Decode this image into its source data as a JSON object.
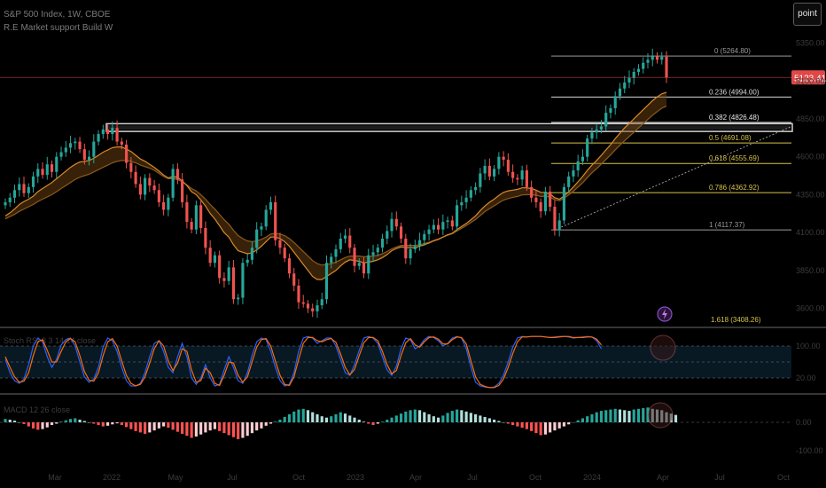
{
  "header": {
    "title": "S&P 500 Index, 1W, CBOE",
    "subtitle": "R.E Market support Build W"
  },
  "toolbar": {
    "point_label": "point"
  },
  "colors": {
    "up": "#26a69a",
    "down": "#ef5350",
    "ema_fast": "#d98a2b",
    "ema_slow": "#8c5a1e",
    "price_badge": "#e04848"
  },
  "chart_data": [
    {
      "type": "candlestick",
      "panel": "price",
      "last_price_label": "5123.41",
      "y_tick_labels": [
        "5350.00",
        "5100.00",
        "4850.00",
        "4600.00",
        "4350.00",
        "4100.00",
        "3850.00",
        "3600.00"
      ],
      "x_tick_labels": [
        "Mar",
        "2022",
        "May",
        "Jul",
        "Oct",
        "2023",
        "Apr",
        "Jul",
        "Oct",
        "2024",
        "Apr",
        "Jul",
        "Oct"
      ],
      "fibonacci": [
        {
          "ratio": "0",
          "label": "0 (5264.80)",
          "value": 5264.8
        },
        {
          "ratio": "0.236",
          "label": "0.236 (4994.00)",
          "value": 4994.0
        },
        {
          "ratio": "0.382",
          "label": "0.382 (4826.48)",
          "value": 4826.48
        },
        {
          "ratio": "0.5",
          "label": "0.5 (4691.08)",
          "value": 4691.08
        },
        {
          "ratio": "0.618",
          "label": "0.618 (4555.69)",
          "value": 4555.69
        },
        {
          "ratio": "0.786",
          "label": "0.786 (4362.92)",
          "value": 4362.92
        },
        {
          "ratio": "1",
          "label": "1 (4117.37)",
          "value": 4117.37
        },
        {
          "ratio": "1.618",
          "label": "1.618 (3408.26)",
          "value": 3408.26
        }
      ],
      "closes": [
        4300,
        4330,
        4380,
        4420,
        4360,
        4400,
        4470,
        4520,
        4480,
        4550,
        4500,
        4600,
        4630,
        4660,
        4690,
        4700,
        4650,
        4580,
        4600,
        4700,
        4750,
        4780,
        4750,
        4790,
        4700,
        4680,
        4560,
        4500,
        4420,
        4350,
        4460,
        4410,
        4380,
        4300,
        4250,
        4330,
        4520,
        4450,
        4300,
        4170,
        4120,
        4280,
        4130,
        4000,
        3900,
        3950,
        3800,
        3780,
        3870,
        3660,
        3670,
        3900,
        3920,
        4000,
        4120,
        4140,
        4250,
        4300,
        4050,
        4000,
        3930,
        3830,
        3750,
        3640,
        3630,
        3600,
        3580,
        3620,
        3660,
        3900,
        3940,
        3990,
        4060,
        4080,
        4000,
        3880,
        3900,
        3830,
        3950,
        3970,
        4000,
        4060,
        4110,
        4190,
        4140,
        4060,
        3930,
        3990,
        4010,
        4050,
        4090,
        4120,
        4150,
        4120,
        4170,
        4180,
        4140,
        4280,
        4300,
        4330,
        4380,
        4400,
        4490,
        4540,
        4470,
        4520,
        4600,
        4580,
        4500,
        4460,
        4450,
        4510,
        4400,
        4330,
        4300,
        4240,
        4370,
        4270,
        4117,
        4180,
        4400,
        4470,
        4510,
        4570,
        4600,
        4720,
        4760,
        4780,
        4800,
        4890,
        4920,
        5000,
        5050,
        5090,
        5120,
        5160,
        5180,
        5220,
        5240,
        5264,
        5240,
        5260,
        5123
      ],
      "ema_fast": [
        4210,
        4230,
        4255,
        4285,
        4305,
        4320,
        4340,
        4370,
        4390,
        4410,
        4430,
        4455,
        4480,
        4505,
        4530,
        4550,
        4565,
        4570,
        4575,
        4590,
        4610,
        4630,
        4645,
        4660,
        4665,
        4665,
        4650,
        4635,
        4610,
        4585,
        4570,
        4550,
        4530,
        4505,
        4480,
        4460,
        4470,
        4465,
        4440,
        4410,
        4370,
        4350,
        4315,
        4275,
        4225,
        4190,
        4145,
        4100,
        4070,
        4020,
        3980,
        3970,
        3960,
        3965,
        3985,
        4010,
        4040,
        4070,
        4070,
        4060,
        4040,
        4010,
        3970,
        3930,
        3890,
        3850,
        3810,
        3790,
        3790,
        3810,
        3830,
        3850,
        3880,
        3905,
        3920,
        3915,
        3910,
        3900,
        3905,
        3910,
        3920,
        3935,
        3955,
        3980,
        3995,
        4005,
        4000,
        4000,
        4000,
        4010,
        4020,
        4030,
        4045,
        4055,
        4070,
        4085,
        4095,
        4120,
        4140,
        4160,
        4185,
        4210,
        4245,
        4275,
        4300,
        4320,
        4345,
        4365,
        4375,
        4380,
        4385,
        4395,
        4395,
        4390,
        4380,
        4365,
        4365,
        4355,
        4330,
        4320,
        4340,
        4370,
        4400,
        4435,
        4470,
        4510,
        4545,
        4575,
        4610,
        4645,
        4680,
        4720,
        4755,
        4790,
        4820,
        4850,
        4880,
        4910,
        4940,
        4970,
        4995,
        5015,
        5025
      ],
      "ema_slow": [
        4190,
        4205,
        4220,
        4240,
        4255,
        4270,
        4285,
        4305,
        4320,
        4335,
        4350,
        4370,
        4390,
        4410,
        4430,
        4450,
        4465,
        4475,
        4485,
        4500,
        4515,
        4530,
        4545,
        4560,
        4570,
        4575,
        4575,
        4570,
        4560,
        4545,
        4535,
        4525,
        4510,
        4490,
        4470,
        4455,
        4455,
        4450,
        4435,
        4415,
        4390,
        4375,
        4350,
        4320,
        4285,
        4255,
        4220,
        4185,
        4155,
        4115,
        4080,
        4060,
        4045,
        4040,
        4045,
        4055,
        4070,
        4090,
        4095,
        4090,
        4080,
        4060,
        4035,
        4005,
        3975,
        3945,
        3915,
        3895,
        3885,
        3890,
        3895,
        3905,
        3920,
        3935,
        3945,
        3945,
        3945,
        3940,
        3942,
        3945,
        3950,
        3960,
        3975,
        3992,
        4005,
        4015,
        4015,
        4015,
        4015,
        4020,
        4028,
        4036,
        4048,
        4058,
        4070,
        4082,
        4092,
        4110,
        4128,
        4146,
        4166,
        4186,
        4212,
        4238,
        4258,
        4276,
        4296,
        4314,
        4324,
        4332,
        4338,
        4348,
        4350,
        4350,
        4346,
        4338,
        4340,
        4334,
        4316,
        4310,
        4326,
        4348,
        4372,
        4400,
        4428,
        4462,
        4494,
        4522,
        4552,
        4582,
        4612,
        4646,
        4676,
        4706,
        4734,
        4762,
        4790,
        4818,
        4846,
        4874,
        4898,
        4920,
        4934
      ],
      "highlights": [
        {
          "note": "resistance band",
          "value_top": 4818,
          "value_bottom": 4767
        },
        {
          "note": "trend line",
          "from": {
            "index": 118,
            "value": 4117
          },
          "to": {
            "index": 146,
            "value": 4800
          }
        }
      ]
    },
    {
      "type": "line",
      "panel": "stoch_rsi",
      "label": "Stoch RSI 3 3 14 14 close",
      "y_tick_labels": [
        "100.00",
        "20.00"
      ],
      "k": [
        55,
        30,
        15,
        10,
        18,
        45,
        80,
        95,
        88,
        60,
        40,
        55,
        82,
        92,
        95,
        80,
        50,
        22,
        12,
        18,
        40,
        78,
        95,
        90,
        70,
        40,
        15,
        5,
        5,
        10,
        30,
        60,
        85,
        90,
        70,
        40,
        30,
        60,
        85,
        60,
        20,
        8,
        20,
        45,
        20,
        5,
        8,
        35,
        60,
        40,
        15,
        10,
        30,
        62,
        88,
        95,
        92,
        70,
        40,
        15,
        5,
        8,
        30,
        70,
        95,
        98,
        95,
        85,
        90,
        95,
        95,
        80,
        55,
        30,
        25,
        45,
        72,
        95,
        98,
        95,
        85,
        60,
        35,
        25,
        42,
        75,
        95,
        92,
        75,
        80,
        92,
        98,
        96,
        90,
        80,
        85,
        95,
        98,
        95,
        75,
        40,
        12,
        5,
        3,
        2,
        3,
        10,
        25,
        50,
        78,
        95,
        98,
        97,
        98,
        98,
        98,
        97,
        96,
        97,
        98,
        98,
        97,
        95,
        96,
        97,
        98,
        97,
        90,
        75
      ],
      "d": [
        60,
        40,
        22,
        12,
        14,
        30,
        62,
        88,
        92,
        72,
        50,
        50,
        70,
        88,
        94,
        88,
        62,
        32,
        16,
        14,
        30,
        62,
        88,
        94,
        80,
        52,
        25,
        10,
        5,
        8,
        22,
        48,
        75,
        90,
        80,
        52,
        34,
        48,
        75,
        70,
        35,
        12,
        15,
        38,
        30,
        10,
        6,
        25,
        50,
        48,
        25,
        12,
        22,
        50,
        78,
        92,
        94,
        80,
        52,
        25,
        8,
        6,
        22,
        55,
        85,
        96,
        96,
        90,
        88,
        92,
        94,
        87,
        65,
        40,
        26,
        36,
        62,
        86,
        96,
        96,
        90,
        70,
        45,
        28,
        34,
        62,
        86,
        94,
        82,
        78,
        88,
        96,
        97,
        93,
        84,
        84,
        92,
        97,
        96,
        84,
        52,
        22,
        8,
        4,
        2,
        2,
        6,
        18,
        40,
        66,
        88,
        97,
        97,
        98,
        98,
        98,
        97,
        96,
        96,
        97,
        98,
        98,
        96,
        96,
        96,
        97,
        97,
        93,
        82
      ]
    },
    {
      "type": "bar",
      "panel": "macd",
      "label": "MACD 12 26 close",
      "y_tick_labels": [
        "0.00",
        "-100.00"
      ],
      "values": [
        10,
        8,
        5,
        0,
        -5,
        -12,
        -18,
        -22,
        -20,
        -15,
        -8,
        -4,
        2,
        6,
        10,
        12,
        8,
        4,
        0,
        -4,
        -8,
        -12,
        -10,
        -6,
        -3,
        -8,
        -14,
        -20,
        -26,
        -30,
        -34,
        -30,
        -24,
        -18,
        -12,
        -16,
        -22,
        -28,
        -34,
        -40,
        -46,
        -42,
        -36,
        -30,
        -24,
        -20,
        -26,
        -32,
        -38,
        -44,
        -50,
        -46,
        -40,
        -32,
        -24,
        -18,
        -10,
        -4,
        2,
        8,
        16,
        24,
        32,
        38,
        40,
        36,
        30,
        24,
        18,
        14,
        18,
        24,
        30,
        26,
        20,
        14,
        8,
        2,
        -4,
        -8,
        -4,
        2,
        8,
        14,
        20,
        26,
        32,
        36,
        38,
        36,
        30,
        24,
        18,
        14,
        20,
        28,
        34,
        38,
        36,
        32,
        28,
        24,
        20,
        16,
        12,
        8,
        4,
        0,
        -4,
        -8,
        -12,
        -16,
        -20,
        -26,
        -32,
        -38,
        -36,
        -30,
        -24,
        -18,
        -12,
        -6,
        0,
        6,
        12,
        18,
        24,
        30,
        34,
        36,
        38,
        40,
        38,
        36,
        34,
        38,
        40,
        42,
        44,
        40,
        38,
        36,
        30,
        26,
        22
      ]
    }
  ]
}
